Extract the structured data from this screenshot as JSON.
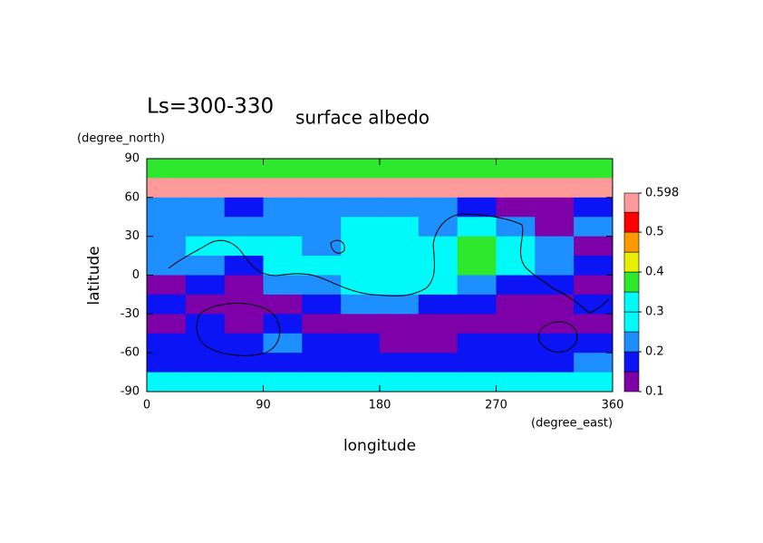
{
  "chart_data": {
    "type": "contour",
    "title": "Ls=300-330",
    "subtitle": "surface albedo",
    "xlabel": "longitude",
    "ylabel": "latitude",
    "xunit": "(degree_east)",
    "yunit": "(degree_north)",
    "xlim": [
      0,
      360
    ],
    "ylim": [
      -90,
      90
    ],
    "xticks": [
      0,
      90,
      180,
      270,
      360
    ],
    "yticks": [
      -90,
      -60,
      -30,
      0,
      30,
      60,
      90
    ],
    "x": [
      15,
      45,
      75,
      105,
      135,
      165,
      195,
      225,
      255,
      285,
      315,
      345
    ],
    "y": [
      82.5,
      67.5,
      52.5,
      37.5,
      22.5,
      7.5,
      -7.5,
      -22.5,
      -37.5,
      -52.5,
      -67.5,
      -82.5
    ],
    "z": [
      [
        0.38,
        0.38,
        0.38,
        0.38,
        0.38,
        0.38,
        0.38,
        0.38,
        0.38,
        0.38,
        0.38,
        0.38
      ],
      [
        0.57,
        0.57,
        0.57,
        0.57,
        0.57,
        0.57,
        0.57,
        0.57,
        0.57,
        0.57,
        0.57,
        0.57
      ],
      [
        0.22,
        0.22,
        0.17,
        0.22,
        0.22,
        0.22,
        0.24,
        0.22,
        0.17,
        0.14,
        0.14,
        0.17
      ],
      [
        0.22,
        0.22,
        0.22,
        0.22,
        0.22,
        0.27,
        0.27,
        0.22,
        0.27,
        0.22,
        0.14,
        0.22
      ],
      [
        0.22,
        0.27,
        0.27,
        0.27,
        0.22,
        0.27,
        0.27,
        0.27,
        0.37,
        0.27,
        0.22,
        0.14
      ],
      [
        0.22,
        0.22,
        0.17,
        0.27,
        0.27,
        0.27,
        0.27,
        0.27,
        0.37,
        0.27,
        0.22,
        0.17
      ],
      [
        0.14,
        0.17,
        0.14,
        0.22,
        0.22,
        0.27,
        0.27,
        0.27,
        0.22,
        0.17,
        0.17,
        0.14
      ],
      [
        0.17,
        0.14,
        0.14,
        0.14,
        0.17,
        0.22,
        0.22,
        0.17,
        0.17,
        0.14,
        0.14,
        0.17
      ],
      [
        0.14,
        0.17,
        0.14,
        0.17,
        0.14,
        0.14,
        0.14,
        0.14,
        0.14,
        0.14,
        0.14,
        0.14
      ],
      [
        0.17,
        0.17,
        0.17,
        0.22,
        0.17,
        0.17,
        0.14,
        0.14,
        0.17,
        0.17,
        0.17,
        0.17
      ],
      [
        0.17,
        0.17,
        0.17,
        0.17,
        0.17,
        0.17,
        0.17,
        0.17,
        0.17,
        0.17,
        0.17,
        0.22
      ],
      [
        0.27,
        0.27,
        0.27,
        0.27,
        0.27,
        0.27,
        0.27,
        0.27,
        0.27,
        0.27,
        0.27,
        0.27
      ]
    ],
    "colorbar": {
      "levels": [
        0.1,
        0.15,
        0.2,
        0.25,
        0.3,
        0.35,
        0.4,
        0.45,
        0.5,
        0.55,
        0.598
      ],
      "colors": [
        "#7d00a8",
        "#0a14f5",
        "#1e8fff",
        "#00fafa",
        "#00fafa",
        "#2ee82e",
        "#e6f000",
        "#ff9900",
        "#ff0000",
        "#ff9a9a"
      ],
      "ticks": [
        0.1,
        0.2,
        0.3,
        0.4,
        0.5,
        0.598
      ]
    }
  }
}
